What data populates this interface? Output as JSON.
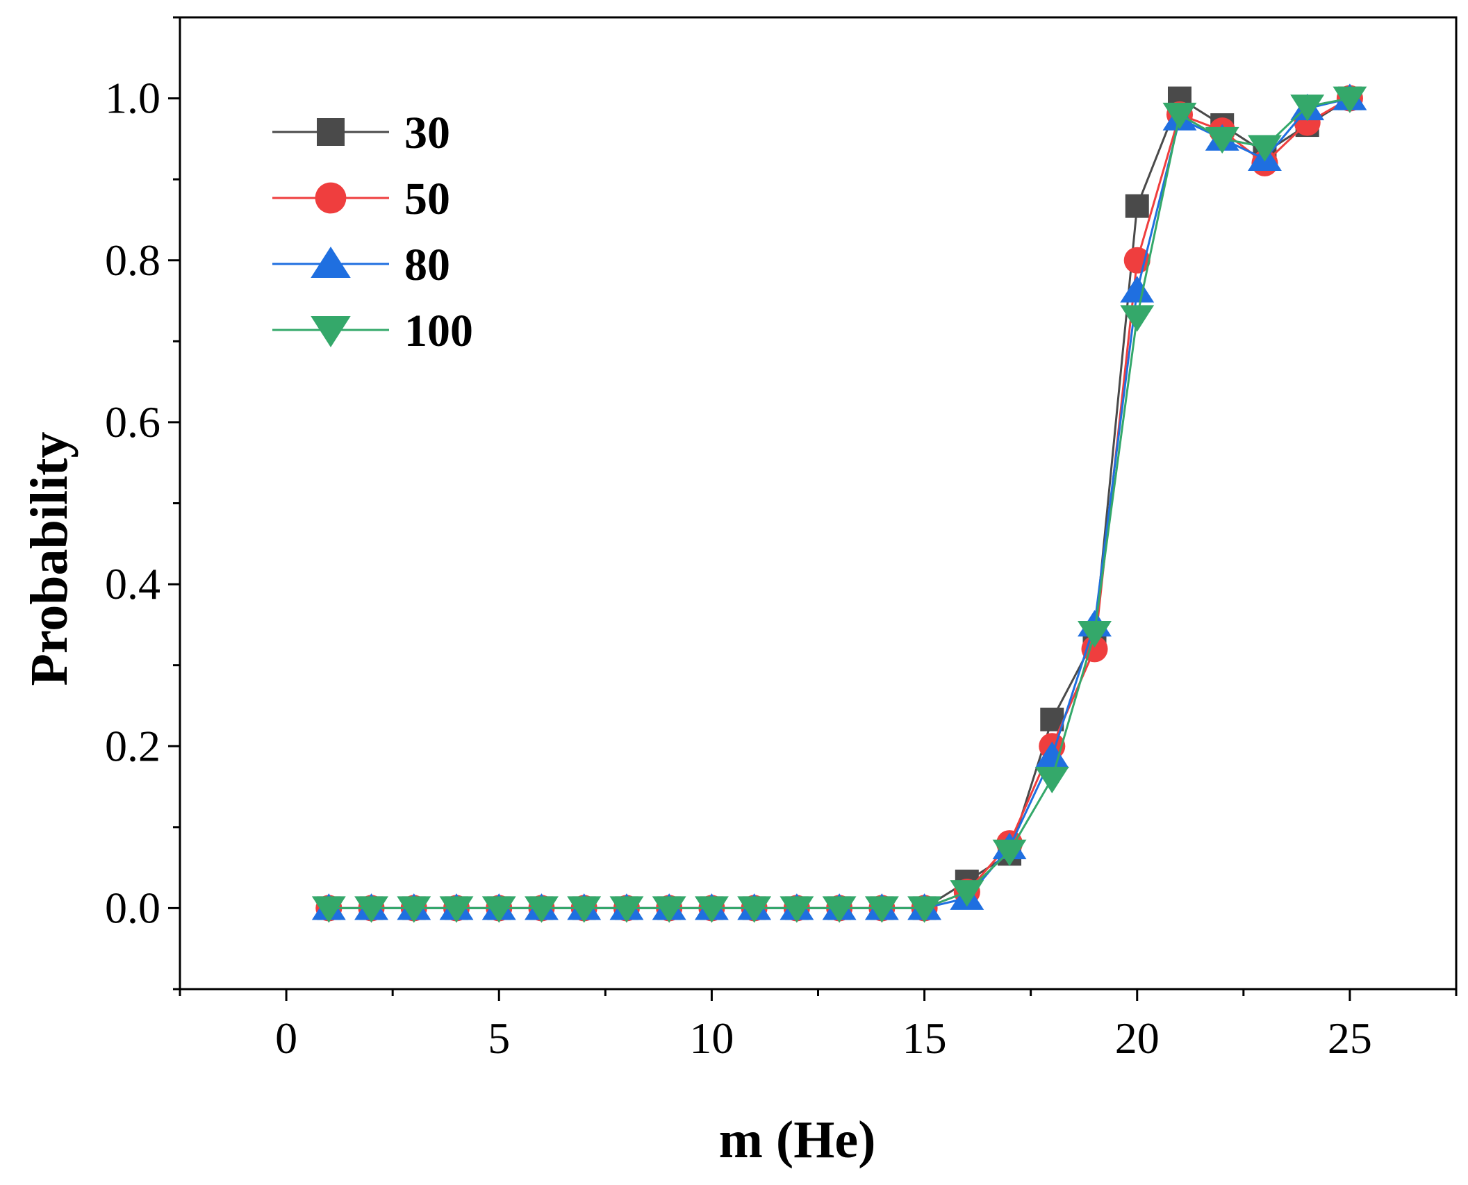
{
  "chart_data": {
    "type": "line",
    "title": "",
    "xlabel": "m (He)",
    "ylabel": "Probability",
    "xlim": [
      -2.5,
      27.5
    ],
    "ylim": [
      -0.1,
      1.1
    ],
    "xticks": [
      0,
      5,
      10,
      15,
      20,
      25
    ],
    "xtick_labels": [
      "0",
      "5",
      "10",
      "15",
      "20",
      "25"
    ],
    "yticks": [
      0.0,
      0.2,
      0.4,
      0.6,
      0.8,
      1.0
    ],
    "ytick_labels": [
      "0.0",
      "0.2",
      "0.4",
      "0.6",
      "0.8",
      "1.0"
    ],
    "grid": false,
    "legend_position": "top-left",
    "x": [
      1,
      2,
      3,
      4,
      5,
      6,
      7,
      8,
      9,
      10,
      11,
      12,
      13,
      14,
      15,
      16,
      17,
      18,
      19,
      20,
      21,
      22,
      23,
      24,
      25
    ],
    "series": [
      {
        "name": "30",
        "color": "#4a4a4a",
        "marker": "square",
        "values": [
          0,
          0,
          0,
          0,
          0,
          0,
          0,
          0,
          0,
          0,
          0,
          0,
          0,
          0,
          0,
          0.033,
          0.067,
          0.233,
          0.333,
          0.867,
          1.0,
          0.967,
          0.933,
          0.967,
          1.0
        ]
      },
      {
        "name": "50",
        "color": "#ef3e3e",
        "marker": "circle",
        "values": [
          0,
          0,
          0,
          0,
          0,
          0,
          0,
          0,
          0,
          0,
          0,
          0,
          0,
          0,
          0,
          0.02,
          0.08,
          0.2,
          0.32,
          0.8,
          0.98,
          0.96,
          0.92,
          0.97,
          1.0
        ]
      },
      {
        "name": "80",
        "color": "#1f6fe0",
        "marker": "triangle-up",
        "values": [
          0,
          0,
          0,
          0,
          0,
          0,
          0,
          0,
          0,
          0,
          0,
          0,
          0,
          0,
          0,
          0.0125,
          0.075,
          0.1875,
          0.35,
          0.7625,
          0.975,
          0.95,
          0.925,
          0.9875,
          1.0
        ]
      },
      {
        "name": "100",
        "color": "#34a86a",
        "marker": "triangle-down",
        "values": [
          0,
          0,
          0,
          0,
          0,
          0,
          0,
          0,
          0,
          0,
          0,
          0,
          0,
          0,
          0,
          0.02,
          0.07,
          0.16,
          0.34,
          0.73,
          0.98,
          0.95,
          0.94,
          0.99,
          1.0
        ]
      }
    ]
  }
}
